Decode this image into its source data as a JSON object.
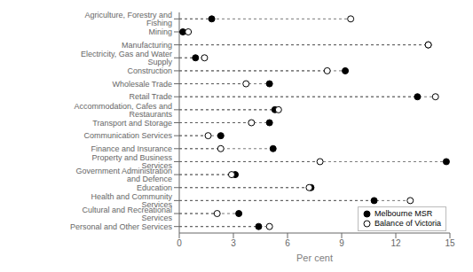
{
  "chart_data": {
    "type": "scatter",
    "orientation": "horizontal",
    "xlabel": "Per cent",
    "categories": [
      "Agriculture, Forestry and Fishing",
      "Mining",
      "Manufacturing",
      "Electricity, Gas and Water Supply",
      "Construction",
      "Wholesale Trade",
      "Retail Trade",
      "Accommodation, Cafes and Restaurants",
      "Transport and Storage",
      "Communication Services",
      "Finance and Insurance",
      "Property and Business Services",
      "Government Administration and Defence",
      "Education",
      "Health and Community Services",
      "Cultural and Recreational Services",
      "Personal and Other Services"
    ],
    "series": [
      {
        "name": "Melbourne MSR",
        "color": "black",
        "marker": "circle",
        "values": [
          1.8,
          0.2,
          13.8,
          0.9,
          9.2,
          5.0,
          13.2,
          5.3,
          5.0,
          2.3,
          5.2,
          14.8,
          3.1,
          7.3,
          10.8,
          3.3,
          4.4
        ]
      },
      {
        "name": "Balance of Victoria",
        "color": "white",
        "marker": "circle",
        "values": [
          9.5,
          0.5,
          13.8,
          1.4,
          8.2,
          3.7,
          14.2,
          5.5,
          4.0,
          1.6,
          2.3,
          7.8,
          2.9,
          7.2,
          12.8,
          2.1,
          5.0
        ]
      }
    ],
    "xlim": [
      0,
      15
    ],
    "xticks": [
      0,
      3,
      6,
      9,
      12,
      15
    ],
    "grid": false,
    "legend": "lower right"
  }
}
